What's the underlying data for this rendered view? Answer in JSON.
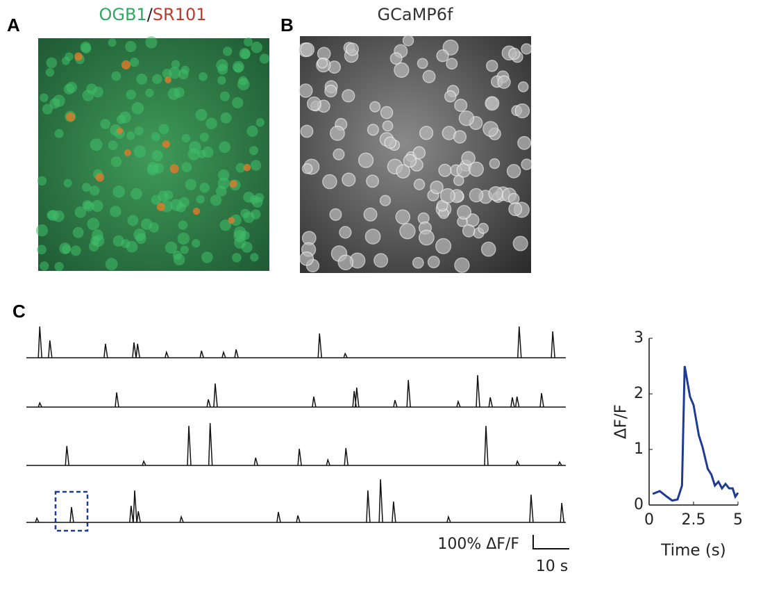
{
  "panels": {
    "a": {
      "label": "A",
      "title_parts": [
        "OGB1",
        "/",
        "SR101"
      ]
    },
    "b": {
      "label": "B",
      "title": "GCaMP6f"
    },
    "c": {
      "label": "C"
    }
  },
  "chart_data": [
    {
      "type": "spikes",
      "scalebar": {
        "y_label": "100% ΔF/F",
        "x_label": "10 s"
      },
      "color": "#111111",
      "series": [
        {
          "x": [
            3.7,
            6.5,
            21.9,
            29.8,
            30.8,
            38.8,
            48.5,
            54.6,
            58.1,
            81.2,
            88.3,
            136.5,
            145.8
          ],
          "values": [
            225,
            125,
            100,
            110,
            100,
            40,
            50,
            40,
            60,
            175,
            30,
            225,
            190
          ]
        },
        {
          "x": [
            3.7,
            25,
            50.4,
            52.3,
            79.6,
            90.8,
            91.5,
            102.1,
            105.8,
            119.6,
            125,
            128.5,
            134.6,
            135.9,
            142.7
          ],
          "values": [
            30,
            105,
            55,
            170,
            75,
            115,
            140,
            50,
            195,
            40,
            230,
            70,
            70,
            75,
            100
          ]
        },
        {
          "x": [
            11.2,
            32.5,
            45,
            50.9,
            63.5,
            75.6,
            83.5,
            88.5,
            127.3,
            136,
            147.7
          ],
          "values": [
            140,
            30,
            285,
            305,
            55,
            120,
            40,
            125,
            285,
            30,
            25
          ]
        },
        {
          "x": [
            2.9,
            12.5,
            29,
            30,
            31,
            42.9,
            69.8,
            75.2,
            94.6,
            98.1,
            101.7,
            116.9,
            139.8,
            148.3
          ],
          "values": [
            30,
            110,
            120,
            230,
            80,
            40,
            75,
            50,
            230,
            310,
            150,
            40,
            200,
            140
          ]
        }
      ]
    },
    {
      "type": "line",
      "xlabel": "Time (s)",
      "ylabel": "ΔF/F",
      "color": "#1f3a93",
      "x": [
        0.2,
        0.6,
        1.0,
        1.3,
        1.6,
        1.85,
        2.0,
        2.3,
        2.5,
        2.8,
        3.0,
        3.3,
        3.5,
        3.7,
        3.9,
        4.1,
        4.3,
        4.5,
        4.7,
        4.85,
        5.0
      ],
      "values": [
        0.2,
        0.25,
        0.15,
        0.08,
        0.1,
        0.35,
        2.5,
        1.95,
        1.8,
        1.25,
        1.05,
        0.65,
        0.55,
        0.35,
        0.42,
        0.3,
        0.38,
        0.3,
        0.3,
        0.15,
        0.22
      ],
      "xlim": [
        0,
        5
      ],
      "ylim": [
        0,
        3
      ],
      "xticks": [
        0,
        2.5,
        5
      ],
      "yticks": [
        0,
        1,
        2,
        3
      ]
    }
  ]
}
